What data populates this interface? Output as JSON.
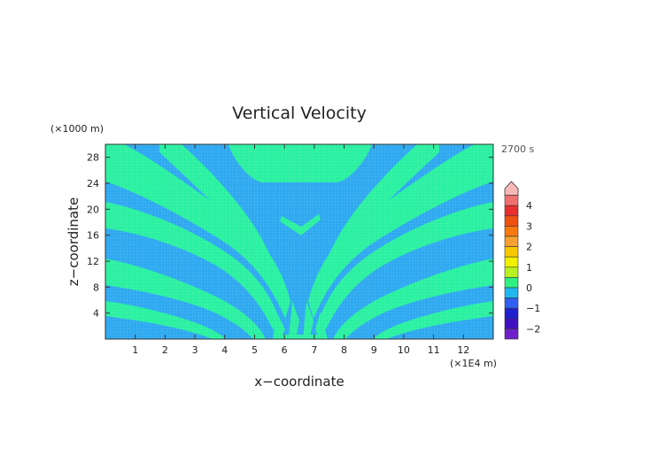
{
  "chart_data": {
    "type": "heatmap",
    "title": "Vertical Velocity",
    "xlabel": "x−coordinate",
    "ylabel": "z−coordinate",
    "x_unit": "(×1E4 m)",
    "y_unit": "(×1000 m)",
    "time_label": "2700 s",
    "xlim": [
      0,
      13
    ],
    "ylim": [
      0,
      30
    ],
    "x_ticks": [
      "1",
      "2",
      "3",
      "4",
      "5",
      "6",
      "7",
      "8",
      "9",
      "10",
      "11",
      "12"
    ],
    "y_ticks": [
      "4",
      "8",
      "12",
      "16",
      "20",
      "24",
      "28"
    ],
    "colorbar": {
      "tick_labels": [
        "4",
        "3",
        "2",
        "1",
        "0",
        "−1",
        "−2"
      ],
      "range": [
        -2.5,
        5
      ],
      "bands": [
        {
          "from": 4.5,
          "to": 5.0,
          "color": "#f8b8b8"
        },
        {
          "from": 4.0,
          "to": 4.5,
          "color": "#f07070"
        },
        {
          "from": 3.5,
          "to": 4.0,
          "color": "#e83030"
        },
        {
          "from": 3.0,
          "to": 3.5,
          "color": "#f05010"
        },
        {
          "from": 2.5,
          "to": 3.0,
          "color": "#f87810"
        },
        {
          "from": 2.0,
          "to": 2.5,
          "color": "#f8a030"
        },
        {
          "from": 1.5,
          "to": 2.0,
          "color": "#f8c800"
        },
        {
          "from": 1.0,
          "to": 1.5,
          "color": "#f0f000"
        },
        {
          "from": 0.5,
          "to": 1.0,
          "color": "#b8f020"
        },
        {
          "from": 0.0,
          "to": 0.5,
          "color": "#30f080"
        },
        {
          "from": -0.5,
          "to": 0.0,
          "color": "#20b8f0"
        },
        {
          "from": -1.0,
          "to": -0.5,
          "color": "#3060f0"
        },
        {
          "from": -1.5,
          "to": -1.0,
          "color": "#2020d0"
        },
        {
          "from": -2.0,
          "to": -1.5,
          "color": "#4010c0"
        },
        {
          "from": -2.5,
          "to": -2.0,
          "color": "#7020c8"
        }
      ]
    },
    "field_colors": {
      "negative": "#2ca8f0",
      "positive": "#28f0a0"
    }
  }
}
